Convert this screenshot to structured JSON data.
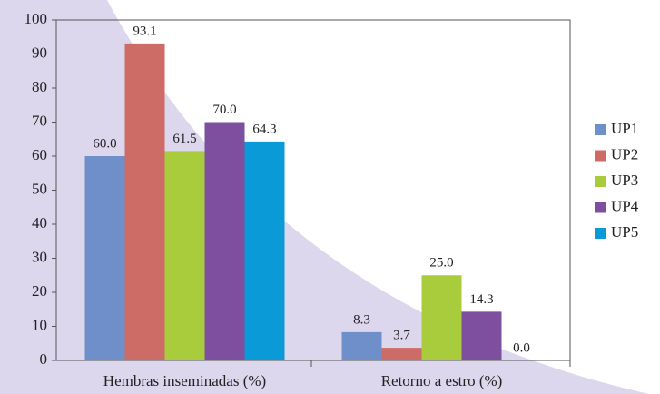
{
  "chart_data": {
    "type": "bar",
    "categories": [
      "Hembras inseminadas (%)",
      "Retorno a estro (%)"
    ],
    "series": [
      {
        "name": "UP1",
        "color": "#6f8fca",
        "values": [
          60.0,
          8.3
        ],
        "value_labels": [
          "60.0",
          "8.3"
        ]
      },
      {
        "name": "UP2",
        "color": "#cd6b66",
        "values": [
          93.1,
          3.7
        ],
        "value_labels": [
          "93.1",
          "3.7"
        ]
      },
      {
        "name": "UP3",
        "color": "#a8cc3c",
        "values": [
          61.5,
          25.0
        ],
        "value_labels": [
          "61.5",
          "25.0"
        ]
      },
      {
        "name": "UP4",
        "color": "#7e4f9e",
        "values": [
          70.0,
          14.3
        ],
        "value_labels": [
          "70.0",
          "14.3"
        ]
      },
      {
        "name": "UP5",
        "color": "#0a9ad8",
        "values": [
          64.3,
          0.0
        ],
        "value_labels": [
          "64.3",
          "0.0"
        ]
      }
    ],
    "ylim": [
      0,
      100
    ],
    "yticks": [
      0,
      10,
      20,
      30,
      40,
      50,
      60,
      70,
      80,
      90,
      100
    ],
    "legend": "right"
  }
}
